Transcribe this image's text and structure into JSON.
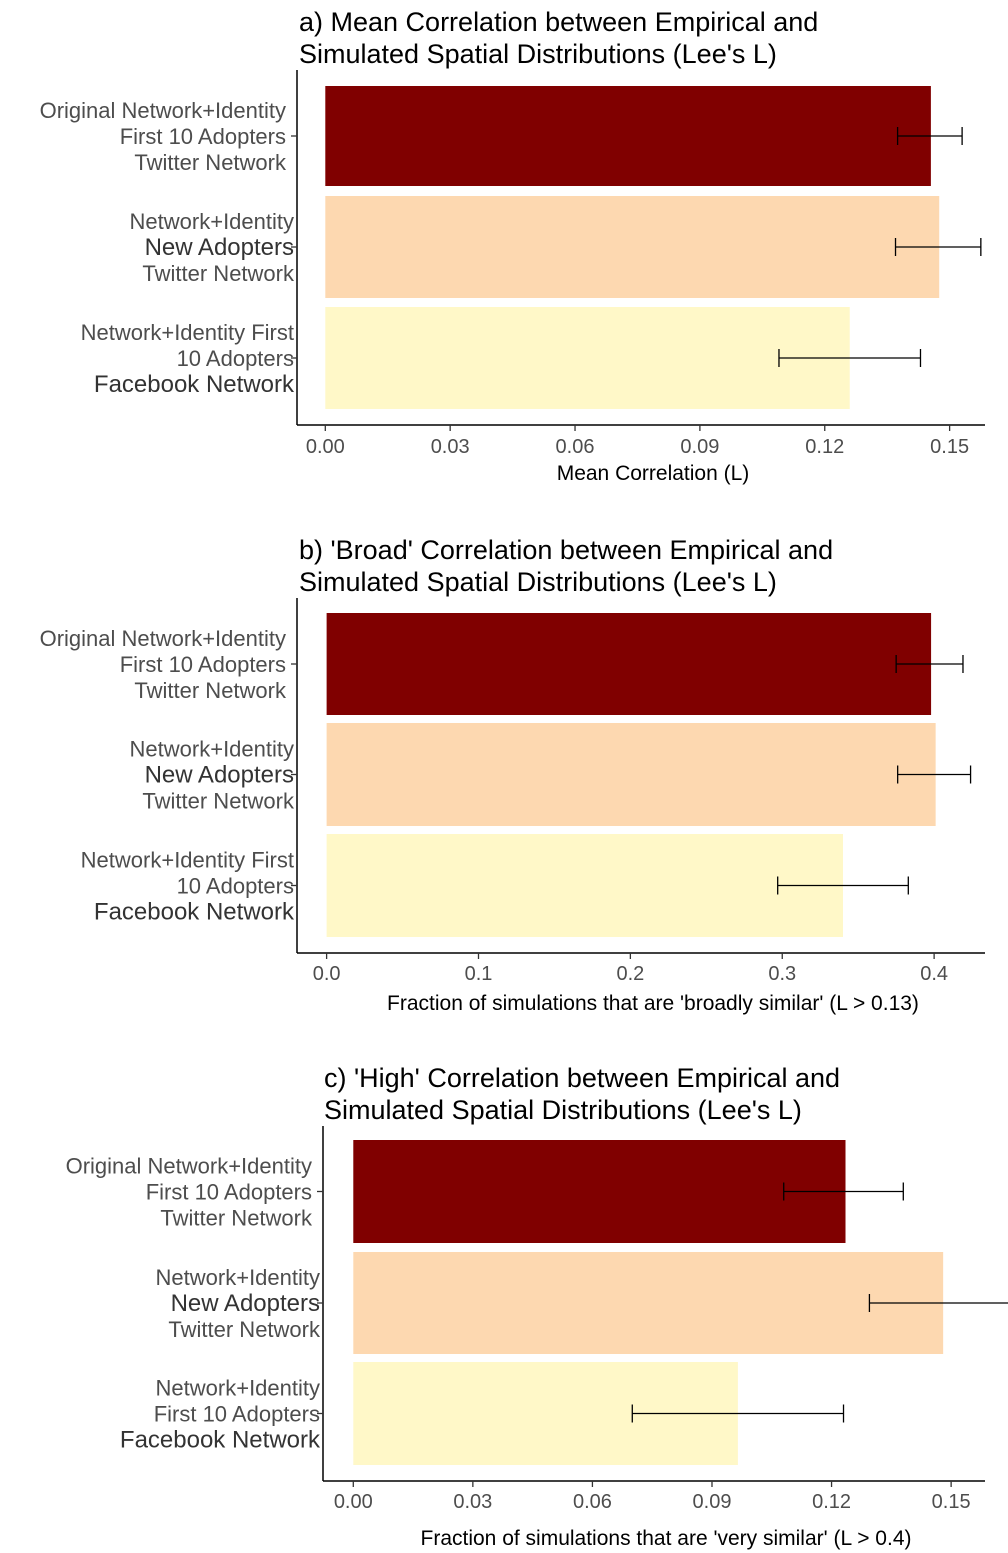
{
  "chart_data": [
    {
      "type": "bar",
      "orientation": "horizontal",
      "title": "a) Mean Correlation between Empirical and Simulated Spatial Distributions (Lee's L)",
      "title_lines": [
        "a) Mean Correlation between Empirical and",
        "Simulated Spatial Distributions (Lee's L)"
      ],
      "xlabel": "Mean Correlation (L)",
      "xlim": [
        -0.0068,
        0.1585
      ],
      "xticks": [
        "0.00",
        "0.03",
        "0.06",
        "0.09",
        "0.12",
        "0.15"
      ],
      "xtick_values": [
        0,
        0.03,
        0.06,
        0.09,
        0.12,
        0.15
      ],
      "categories": [
        {
          "lines": [
            "Original Network+Identity",
            "First 10 Adopters",
            "Twitter Network"
          ],
          "bold_line": -1
        },
        {
          "lines": [
            "Network+Identity",
            "New Adopters",
            "Twitter Network"
          ],
          "bold_line": 1
        },
        {
          "lines": [
            "Network+Identity First",
            "10 Adopters",
            "Facebook Network"
          ],
          "bold_line": 2
        }
      ],
      "values": [
        0.1455,
        0.1475,
        0.126
      ],
      "error_low": [
        0.1375,
        0.137,
        0.109
      ],
      "error_high": [
        0.153,
        0.1575,
        0.143
      ],
      "colors": [
        "#800000",
        "#fdd8b0",
        "#fff8c8"
      ],
      "grid": false,
      "legend": "none"
    },
    {
      "type": "bar",
      "orientation": "horizontal",
      "title": "b) 'Broad' Correlation between Empirical and Simulated Spatial Distributions (Lee's L)",
      "title_lines": [
        "b) 'Broad' Correlation between Empirical and",
        "Simulated Spatial Distributions (Lee's L)"
      ],
      "xlabel": "Fraction of simulations that are 'broadly similar' (L > 0.13)",
      "xlim": [
        -0.0195,
        0.4335
      ],
      "xticks": [
        "0.0",
        "0.1",
        "0.2",
        "0.3",
        "0.4"
      ],
      "xtick_values": [
        0,
        0.1,
        0.2,
        0.3,
        0.4
      ],
      "categories": [
        {
          "lines": [
            "Original Network+Identity",
            "First 10 Adopters",
            "Twitter Network"
          ],
          "bold_line": -1
        },
        {
          "lines": [
            "Network+Identity",
            "New Adopters",
            "Twitter Network"
          ],
          "bold_line": 1
        },
        {
          "lines": [
            "Network+Identity First",
            "10 Adopters",
            "Facebook Network"
          ],
          "bold_line": 2
        }
      ],
      "values": [
        0.398,
        0.401,
        0.34
      ],
      "error_low": [
        0.375,
        0.376,
        0.297
      ],
      "error_high": [
        0.419,
        0.424,
        0.383
      ],
      "colors": [
        "#800000",
        "#fdd8b0",
        "#fff8c8"
      ],
      "grid": false,
      "legend": "none"
    },
    {
      "type": "bar",
      "orientation": "horizontal",
      "title": "c) 'High' Correlation between Empirical and Simulated Spatial Distributions (Lee's L)",
      "title_lines": [
        "c) 'High' Correlation between Empirical and",
        "Simulated Spatial Distributions (Lee's L)"
      ],
      "xlabel": "Fraction of simulations that are 'very similar' (L > 0.4)",
      "xlim": [
        -0.0076,
        0.1585
      ],
      "xticks": [
        "0.00",
        "0.03",
        "0.06",
        "0.09",
        "0.12",
        "0.15"
      ],
      "xtick_values": [
        0,
        0.03,
        0.06,
        0.09,
        0.12,
        0.15
      ],
      "categories": [
        {
          "lines": [
            "Original Network+Identity",
            "First 10 Adopters",
            "Twitter Network"
          ],
          "bold_line": -1
        },
        {
          "lines": [
            "Network+Identity",
            "New Adopters",
            "Twitter Network"
          ],
          "bold_line": 1
        },
        {
          "lines": [
            "Network+Identity",
            "First 10 Adopters",
            "Facebook Network"
          ],
          "bold_line": 2
        }
      ],
      "values": [
        0.1235,
        0.148,
        0.0965
      ],
      "error_low": [
        0.108,
        0.1295,
        0.07
      ],
      "error_high": [
        0.138,
        0.1655,
        0.123
      ],
      "colors": [
        "#800000",
        "#fdd8b0",
        "#fff8c8"
      ],
      "grid": false,
      "legend": "none"
    }
  ]
}
